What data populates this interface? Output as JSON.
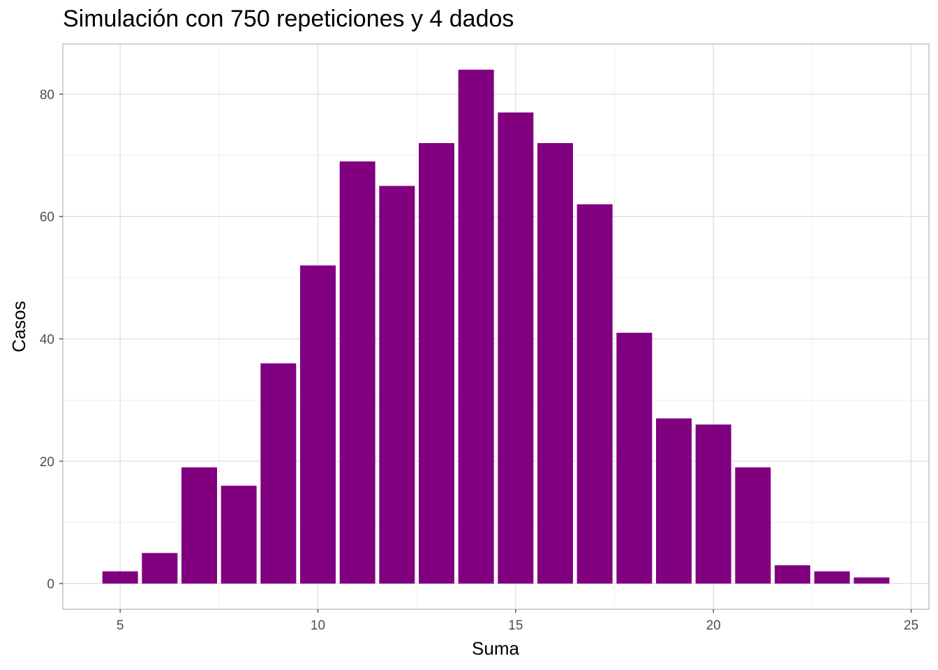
{
  "chart_data": {
    "type": "bar",
    "title": "Simulación con 750 repeticiones y 4 dados",
    "xlabel": "Suma",
    "ylabel": "Casos",
    "x": [
      5,
      6,
      7,
      8,
      9,
      10,
      11,
      12,
      13,
      14,
      15,
      16,
      17,
      18,
      19,
      20,
      21,
      22,
      23,
      24
    ],
    "values": [
      2,
      5,
      19,
      16,
      36,
      52,
      69,
      65,
      72,
      84,
      77,
      72,
      62,
      41,
      27,
      26,
      19,
      3,
      2,
      1
    ],
    "bar_color": "#800080",
    "xlim": [
      3.55,
      25.45
    ],
    "ylim": [
      -4.2,
      88.2
    ],
    "x_ticks": [
      5,
      10,
      15,
      20,
      25
    ],
    "y_ticks": [
      0,
      20,
      40,
      60,
      80
    ],
    "grid": true,
    "grid_color": "#ebebeb",
    "panel_border_color": "#b3b3b3"
  }
}
